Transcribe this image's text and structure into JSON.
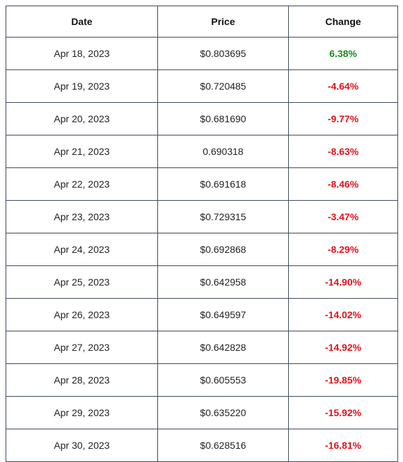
{
  "table": {
    "headers": [
      "Date",
      "Price",
      "Change"
    ],
    "rows": [
      {
        "date": "Apr 18, 2023",
        "price": "$0.803695",
        "change": "6.38%",
        "trend": "up"
      },
      {
        "date": "Apr 19, 2023",
        "price": "$0.720485",
        "change": "-4.64%",
        "trend": "down"
      },
      {
        "date": "Apr 20, 2023",
        "price": "$0.681690",
        "change": "-9.77%",
        "trend": "down"
      },
      {
        "date": "Apr 21, 2023",
        "price": "0.690318",
        "change": "-8.63%",
        "trend": "down"
      },
      {
        "date": "Apr 22, 2023",
        "price": "$0.691618",
        "change": "-8.46%",
        "trend": "down"
      },
      {
        "date": "Apr 23, 2023",
        "price": "$0.729315",
        "change": "-3.47%",
        "trend": "down"
      },
      {
        "date": "Apr 24, 2023",
        "price": "$0.692868",
        "change": "-8.29%",
        "trend": "down"
      },
      {
        "date": "Apr 25, 2023",
        "price": "$0.642958",
        "change": "-14.90%",
        "trend": "down"
      },
      {
        "date": "Apr 26, 2023",
        "price": "$0.649597",
        "change": "-14.02%",
        "trend": "down"
      },
      {
        "date": "Apr 27, 2023",
        "price": "$0.642828",
        "change": "-14.92%",
        "trend": "down"
      },
      {
        "date": "Apr 28, 2023",
        "price": "$0.605553",
        "change": "-19.85%",
        "trend": "down"
      },
      {
        "date": "Apr 29, 2023",
        "price": "$0.635220",
        "change": "-15.92%",
        "trend": "down"
      },
      {
        "date": "Apr 30, 2023",
        "price": "$0.628516",
        "change": "-16.81%",
        "trend": "down"
      }
    ]
  },
  "colors": {
    "positive": "#1a8a1a",
    "negative": "#e3121c",
    "border": "#3f4a5e"
  }
}
